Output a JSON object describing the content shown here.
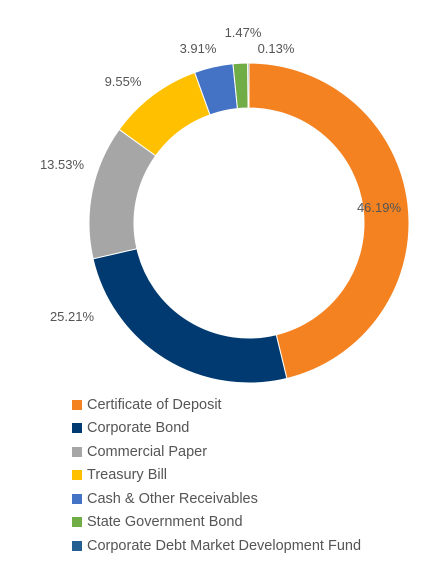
{
  "chart_data": {
    "type": "donut",
    "title": "",
    "legend_position": "bottom",
    "categories": [
      "Certificate of Deposit",
      "Corporate Bond",
      "Commercial Paper",
      "Treasury Bill",
      "Cash & Other Receivables",
      "State Government Bond",
      "Corporate Debt Market Development Fund"
    ],
    "values": [
      46.19,
      25.21,
      13.53,
      9.55,
      3.91,
      1.47,
      0.13
    ],
    "data_labels": [
      "46.19%",
      "25.21%",
      "13.53%",
      "9.55%",
      "3.91%",
      "1.47%",
      "0.13%"
    ],
    "colors": [
      "#F58220",
      "#003A70",
      "#A6A6A6",
      "#FFC000",
      "#4472C4",
      "#70AD47",
      "#255E91"
    ]
  }
}
